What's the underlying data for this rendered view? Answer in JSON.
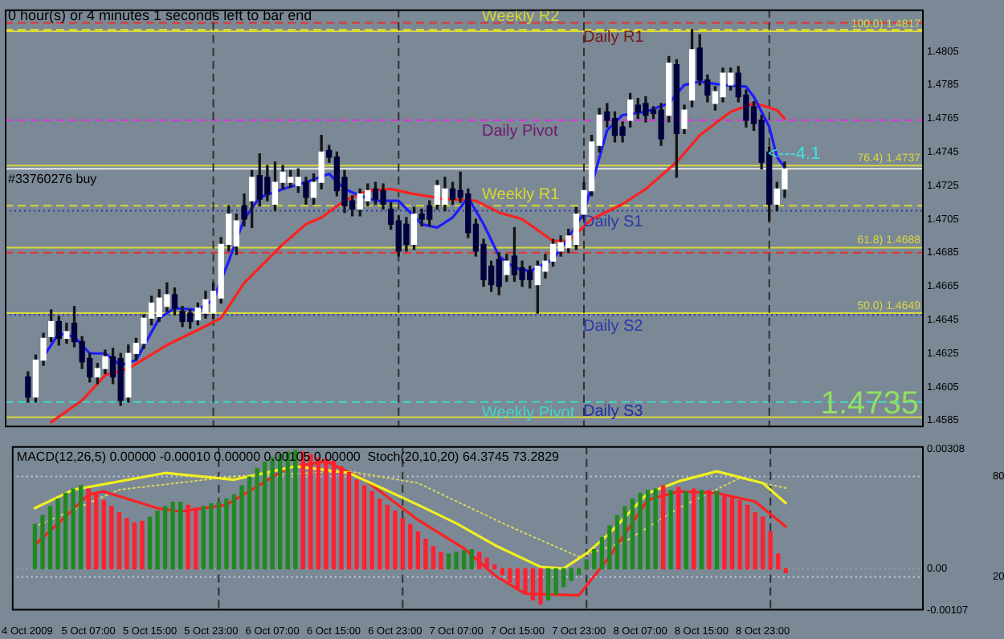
{
  "chart_data": [
    {
      "type": "candlestick",
      "x": [
        "2009-10-05T00:00",
        "2009-10-05T01:00",
        "2009-10-05T02:00",
        "2009-10-05T03:00",
        "2009-10-05T04:00",
        "2009-10-05T05:00",
        "2009-10-05T06:00",
        "2009-10-05T07:00",
        "2009-10-05T08:00",
        "2009-10-05T09:00",
        "2009-10-05T10:00",
        "2009-10-05T11:00",
        "2009-10-05T12:00",
        "2009-10-05T13:00",
        "2009-10-05T14:00",
        "2009-10-05T15:00",
        "2009-10-05T16:00",
        "2009-10-05T17:00",
        "2009-10-05T18:00",
        "2009-10-05T19:00",
        "2009-10-05T20:00",
        "2009-10-05T21:00",
        "2009-10-05T22:00",
        "2009-10-05T23:00",
        "2009-10-06T00:00",
        "2009-10-06T01:00",
        "2009-10-06T02:00",
        "2009-10-06T03:00",
        "2009-10-06T04:00",
        "2009-10-06T05:00",
        "2009-10-06T06:00",
        "2009-10-06T07:00",
        "2009-10-06T08:00",
        "2009-10-06T09:00",
        "2009-10-06T10:00",
        "2009-10-06T11:00",
        "2009-10-06T12:00",
        "2009-10-06T13:00",
        "2009-10-06T14:00",
        "2009-10-06T15:00",
        "2009-10-06T16:00",
        "2009-10-06T17:00",
        "2009-10-06T18:00",
        "2009-10-06T19:00",
        "2009-10-06T20:00",
        "2009-10-06T21:00",
        "2009-10-06T22:00",
        "2009-10-06T23:00",
        "2009-10-07T00:00",
        "2009-10-07T01:00",
        "2009-10-07T02:00",
        "2009-10-07T03:00",
        "2009-10-07T04:00",
        "2009-10-07T05:00",
        "2009-10-07T06:00",
        "2009-10-07T07:00",
        "2009-10-07T08:00",
        "2009-10-07T09:00",
        "2009-10-07T10:00",
        "2009-10-07T11:00",
        "2009-10-07T12:00",
        "2009-10-07T13:00",
        "2009-10-07T14:00",
        "2009-10-07T15:00",
        "2009-10-07T16:00",
        "2009-10-07T17:00",
        "2009-10-07T18:00",
        "2009-10-07T19:00",
        "2009-10-07T20:00",
        "2009-10-07T21:00",
        "2009-10-07T22:00",
        "2009-10-07T23:00",
        "2009-10-08T00:00",
        "2009-10-08T01:00",
        "2009-10-08T02:00",
        "2009-10-08T03:00",
        "2009-10-08T04:00",
        "2009-10-08T05:00",
        "2009-10-08T06:00",
        "2009-10-08T07:00",
        "2009-10-08T08:00",
        "2009-10-08T09:00",
        "2009-10-08T10:00",
        "2009-10-08T11:00",
        "2009-10-08T12:00",
        "2009-10-08T13:00",
        "2009-10-08T14:00",
        "2009-10-08T15:00",
        "2009-10-08T16:00",
        "2009-10-08T17:00",
        "2009-10-08T18:00",
        "2009-10-08T19:00",
        "2009-10-08T20:00",
        "2009-10-08T21:00",
        "2009-10-08T22:00",
        "2009-10-08T23:00",
        "2009-10-09T00:00",
        "2009-10-09T01:00",
        "2009-10-09T02:00"
      ],
      "ohlc": [
        [
          1.4611,
          1.4614,
          1.4596,
          1.4599
        ],
        [
          1.4599,
          1.4624,
          1.4596,
          1.4621
        ],
        [
          1.4621,
          1.4637,
          1.4618,
          1.4634
        ],
        [
          1.4635,
          1.4651,
          1.4632,
          1.4644
        ],
        [
          1.4644,
          1.4647,
          1.463,
          1.4634
        ],
        [
          1.4634,
          1.4643,
          1.4631,
          1.4638
        ],
        [
          1.4643,
          1.4653,
          1.4629,
          1.4632
        ],
        [
          1.4632,
          1.4635,
          1.4616,
          1.462
        ],
        [
          1.4622,
          1.4625,
          1.4608,
          1.4611
        ],
        [
          1.4611,
          1.4619,
          1.4607,
          1.4616
        ],
        [
          1.4616,
          1.4627,
          1.4613,
          1.4623
        ],
        [
          1.4623,
          1.4628,
          1.4607,
          1.4611
        ],
        [
          1.4622,
          1.4625,
          1.4594,
          1.4597
        ],
        [
          1.4599,
          1.463,
          1.4596,
          1.4625
        ],
        [
          1.4625,
          1.4634,
          1.4621,
          1.4631
        ],
        [
          1.4631,
          1.4648,
          1.4628,
          1.4646
        ],
        [
          1.4646,
          1.4659,
          1.4642,
          1.4655
        ],
        [
          1.4647,
          1.4663,
          1.4644,
          1.4658
        ],
        [
          1.4653,
          1.4667,
          1.465,
          1.466
        ],
        [
          1.466,
          1.4664,
          1.4648,
          1.4652
        ],
        [
          1.465,
          1.4653,
          1.4641,
          1.4644
        ],
        [
          1.4649,
          1.4651,
          1.464,
          1.4644
        ],
        [
          1.4645,
          1.4655,
          1.4642,
          1.4652
        ],
        [
          1.4649,
          1.4662,
          1.4646,
          1.4657
        ],
        [
          1.4649,
          1.4667,
          1.4646,
          1.4662
        ],
        [
          1.4658,
          1.4694,
          1.4655,
          1.469
        ],
        [
          1.469,
          1.4713,
          1.4686,
          1.4708
        ],
        [
          1.4689,
          1.4708,
          1.4684,
          1.4704
        ],
        [
          1.4713,
          1.472,
          1.4701,
          1.4705
        ],
        [
          1.4716,
          1.4734,
          1.47,
          1.473
        ],
        [
          1.4731,
          1.4744,
          1.4713,
          1.4717
        ],
        [
          1.473,
          1.4737,
          1.4716,
          1.472
        ],
        [
          1.4714,
          1.4739,
          1.471,
          1.4727
        ],
        [
          1.4727,
          1.4737,
          1.4723,
          1.4733
        ],
        [
          1.4727,
          1.4734,
          1.4724,
          1.473
        ],
        [
          1.4725,
          1.4735,
          1.4721,
          1.473
        ],
        [
          1.4727,
          1.473,
          1.4714,
          1.4718
        ],
        [
          1.4718,
          1.4732,
          1.4714,
          1.4727
        ],
        [
          1.4727,
          1.4755,
          1.4723,
          1.4745
        ],
        [
          1.4746,
          1.4749,
          1.4739,
          1.4742
        ],
        [
          1.4742,
          1.4745,
          1.4719,
          1.4722
        ],
        [
          1.473,
          1.4734,
          1.4709,
          1.4713
        ],
        [
          1.4716,
          1.4719,
          1.4707,
          1.4711
        ],
        [
          1.4711,
          1.4723,
          1.4707,
          1.472
        ],
        [
          1.4716,
          1.4726,
          1.4713,
          1.4722
        ],
        [
          1.4723,
          1.4727,
          1.4714,
          1.4717
        ],
        [
          1.4722,
          1.4726,
          1.4711,
          1.4714
        ],
        [
          1.4711,
          1.4715,
          1.4699,
          1.4702
        ],
        [
          1.4704,
          1.4707,
          1.4683,
          1.4686
        ],
        [
          1.4702,
          1.4706,
          1.4686,
          1.469
        ],
        [
          1.469,
          1.4712,
          1.4687,
          1.4708
        ],
        [
          1.4708,
          1.4711,
          1.4701,
          1.4705
        ],
        [
          1.4713,
          1.4716,
          1.4701,
          1.4705
        ],
        [
          1.4714,
          1.4728,
          1.4711,
          1.4725
        ],
        [
          1.4714,
          1.473,
          1.471,
          1.4723
        ],
        [
          1.4723,
          1.4727,
          1.4714,
          1.4717
        ],
        [
          1.4722,
          1.4733,
          1.4715,
          1.4718
        ],
        [
          1.472,
          1.4723,
          1.4694,
          1.4697
        ],
        [
          1.4702,
          1.4705,
          1.4683,
          1.4686
        ],
        [
          1.469,
          1.4693,
          1.4665,
          1.4669
        ],
        [
          1.4677,
          1.468,
          1.4662,
          1.4666
        ],
        [
          1.4681,
          1.4685,
          1.466,
          1.4665
        ],
        [
          1.4672,
          1.4684,
          1.4668,
          1.468
        ],
        [
          1.4683,
          1.47,
          1.4668,
          1.4672
        ],
        [
          1.4676,
          1.468,
          1.4665,
          1.4669
        ],
        [
          1.4674,
          1.4677,
          1.4664,
          1.4669
        ],
        [
          1.4666,
          1.468,
          1.4649,
          1.4677
        ],
        [
          1.4674,
          1.4684,
          1.467,
          1.468
        ],
        [
          1.468,
          1.4693,
          1.4677,
          1.469
        ],
        [
          1.4686,
          1.4695,
          1.4683,
          1.4691
        ],
        [
          1.4688,
          1.4699,
          1.4685,
          1.4695
        ],
        [
          1.469,
          1.4712,
          1.4687,
          1.4708
        ],
        [
          1.4708,
          1.4727,
          1.4705,
          1.4722
        ],
        [
          1.4722,
          1.4755,
          1.4719,
          1.4751
        ],
        [
          1.4749,
          1.4771,
          1.4745,
          1.4767
        ],
        [
          1.4769,
          1.4774,
          1.476,
          1.4764
        ],
        [
          1.4765,
          1.4769,
          1.4751,
          1.4755
        ],
        [
          1.476,
          1.4763,
          1.4751,
          1.4755
        ],
        [
          1.4764,
          1.478,
          1.476,
          1.4776
        ],
        [
          1.4773,
          1.4777,
          1.4765,
          1.4769
        ],
        [
          1.4774,
          1.4778,
          1.4763,
          1.4767
        ],
        [
          1.477,
          1.4772,
          1.4765,
          1.4768
        ],
        [
          1.477,
          1.4774,
          1.4749,
          1.4753
        ],
        [
          1.4767,
          1.4802,
          1.4763,
          1.4798
        ],
        [
          1.4797,
          1.48,
          1.473,
          1.4756
        ],
        [
          1.4759,
          1.4773,
          1.4756,
          1.477
        ],
        [
          1.4776,
          1.4818,
          1.4772,
          1.4806
        ],
        [
          1.4807,
          1.4815,
          1.4785,
          1.4788
        ],
        [
          1.4788,
          1.4791,
          1.4775,
          1.4779
        ],
        [
          1.4774,
          1.4784,
          1.477,
          1.4781
        ],
        [
          1.4778,
          1.4795,
          1.4775,
          1.4792
        ],
        [
          1.4785,
          1.4795,
          1.4782,
          1.4792
        ],
        [
          1.4792,
          1.4796,
          1.4775,
          1.4778
        ],
        [
          1.4779,
          1.4782,
          1.476,
          1.4764
        ],
        [
          1.4772,
          1.4775,
          1.4758,
          1.4762
        ],
        [
          1.4764,
          1.4767,
          1.4735,
          1.4739
        ],
        [
          1.4745,
          1.4748,
          1.4704,
          1.4714
        ],
        [
          1.4714,
          1.4727,
          1.471,
          1.4723
        ],
        [
          1.4723,
          1.4739,
          1.4718,
          1.4735
        ]
      ],
      "xlim": [
        "2009-10-04T21:00",
        "2009-10-09T20:00"
      ],
      "ylim": [
        1.4581,
        1.483
      ],
      "yticks": [
        1.4585,
        1.4605,
        1.4625,
        1.4645,
        1.4665,
        1.4685,
        1.4705,
        1.4725,
        1.4745,
        1.4765,
        1.4785,
        1.4805
      ],
      "tick_labels": "y",
      "grid": false,
      "legend": false,
      "series": [
        {
          "type": "line",
          "color": "#1c1cff",
          "x": [
            "2009-10-05T02:00",
            "2009-10-05T04:00",
            "2009-10-05T06:00",
            "2009-10-05T08:00",
            "2009-10-05T10:00",
            "2009-10-05T12:00",
            "2009-10-05T14:00",
            "2009-10-05T17:00",
            "2009-10-05T19:00",
            "2009-10-05T22:00",
            "2009-10-06T00:00",
            "2009-10-06T02:00",
            "2009-10-06T04:00",
            "2009-10-06T06:00",
            "2009-10-06T09:00",
            "2009-10-06T12:00",
            "2009-10-06T15:00",
            "2009-10-06T17:00",
            "2009-10-06T19:00",
            "2009-10-06T21:00",
            "2009-10-07T00:00",
            "2009-10-07T03:00",
            "2009-10-07T05:00",
            "2009-10-07T07:00",
            "2009-10-07T09:00",
            "2009-10-07T11:00",
            "2009-10-07T13:00",
            "2009-10-07T15:00",
            "2009-10-07T17:00",
            "2009-10-07T20:00",
            "2009-10-07T22:00",
            "2009-10-08T00:00",
            "2009-10-08T01:00",
            "2009-10-08T03:00",
            "2009-10-08T05:00",
            "2009-10-08T08:00",
            "2009-10-08T11:00",
            "2009-10-08T13:00",
            "2009-10-08T15:00",
            "2009-10-08T18:00",
            "2009-10-08T21:00",
            "2009-10-08T22:00",
            "2009-10-09T00:00",
            "2009-10-09T01:00",
            "2009-10-09T02:00"
          ],
          "values": [
            1.4623,
            1.4637,
            1.4635,
            1.4625,
            1.4625,
            1.4618,
            1.4621,
            1.4646,
            1.4652,
            1.4651,
            1.4657,
            1.468,
            1.4705,
            1.4718,
            1.4723,
            1.4727,
            1.4732,
            1.4723,
            1.4719,
            1.4716,
            1.4716,
            1.4702,
            1.47,
            1.4706,
            1.4718,
            1.4702,
            1.4683,
            1.4676,
            1.4674,
            1.4681,
            1.4694,
            1.4709,
            null,
            1.4758,
            1.4767,
            1.4769,
            1.4774,
            1.4785,
            1.4787,
            1.4785,
            1.4784,
            1.4778,
            1.476,
            1.4742,
            1.4736
          ]
        },
        {
          "type": "line",
          "color": "#ff2020",
          "x": [
            "2009-10-05T03:00",
            "2009-10-05T07:00",
            "2009-10-05T10:00",
            "2009-10-05T13:00",
            "2009-10-05T18:00",
            "2009-10-05T22:00",
            "2009-10-06T01:00",
            "2009-10-06T04:00",
            "2009-10-06T09:00",
            "2009-10-06T12:00",
            "2009-10-06T14:00",
            "2009-10-06T17:00",
            "2009-10-06T20:00",
            "2009-10-06T23:00",
            "2009-10-07T02:00",
            "2009-10-07T06:00",
            "2009-10-07T10:00",
            "2009-10-07T13:00",
            "2009-10-07T16:00",
            "2009-10-07T20:00",
            "2009-10-07T22:00",
            "2009-10-08T01:00",
            "2009-10-08T05:00",
            "2009-10-08T08:00",
            "2009-10-08T12:00",
            "2009-10-08T15:00",
            "2009-10-08T19:00",
            "2009-10-08T22:00",
            "2009-10-08T23:00",
            "2009-10-09T01:00",
            "2009-10-09T02:00"
          ],
          "values": [
            1.4584,
            1.4597,
            1.4612,
            1.4616,
            1.463,
            1.4639,
            1.4646,
            1.4667,
            1.469,
            1.4702,
            1.4706,
            1.4716,
            1.4722,
            1.4723,
            1.472,
            1.4717,
            1.4716,
            1.4709,
            1.4705,
            1.4692,
            1.4692,
            1.4705,
            1.4714,
            1.4723,
            1.4739,
            1.4755,
            1.4769,
            1.4774,
            1.4773,
            1.477,
            1.4765
          ]
        }
      ],
      "ref_lines": [
        {
          "axis": "y",
          "value": 1.4822,
          "label": "Daily R1",
          "color": "#e83030",
          "line_style": "dashed"
        },
        {
          "axis": "y",
          "value": 1.4818,
          "label": "Weekly R2",
          "color": "#d8d830",
          "line_style": "dashed"
        },
        {
          "axis": "y",
          "value": 1.4817,
          "label": "100.0) 1.4817",
          "color": "#d8d840"
        },
        {
          "axis": "y",
          "value": 1.4764,
          "label": "Daily Pivot",
          "color": "#e030e0",
          "line_style": "dashed"
        },
        {
          "axis": "y",
          "value": 1.4737,
          "label": "76.4) 1.4737",
          "color": "#d8d840"
        },
        {
          "axis": "y",
          "value": 1.4735,
          "color": "#e8e8e8"
        },
        {
          "axis": "y",
          "value": 1.4713,
          "label": "Weekly R1",
          "color": "#d8d830",
          "line_style": "dashed"
        },
        {
          "axis": "y",
          "value": 1.471,
          "label": "Daily S1",
          "color": "#2a3aa8",
          "line_style": "dotted"
        },
        {
          "axis": "y",
          "value": 1.4688,
          "label": "61.8) 1.4688",
          "color": "#d8d840"
        },
        {
          "axis": "y",
          "value": 1.4685,
          "color": "#e83030",
          "line_style": "dashed"
        },
        {
          "axis": "y",
          "value": 1.4649,
          "label": "50.0) 1.4649",
          "color": "#d8d840"
        },
        {
          "axis": "y",
          "value": 1.4648,
          "label": "Daily S2",
          "color": "#2a3aa8",
          "line_style": "dotted"
        },
        {
          "axis": "y",
          "value": 1.4596,
          "label": "Weekly Pivot",
          "color": "#40d8c8",
          "line_style": "dashed"
        },
        {
          "axis": "y",
          "value": 1.4587,
          "color": "#d8d840"
        },
        {
          "axis": "x",
          "value": "2009-10-06T00:00",
          "color": "#303030",
          "line_style": "dashed"
        },
        {
          "axis": "x",
          "value": "2009-10-07T00:00",
          "color": "#303030",
          "line_style": "dashed"
        },
        {
          "axis": "x",
          "value": "2009-10-08T00:00",
          "color": "#303030",
          "line_style": "dashed"
        },
        {
          "axis": "x",
          "value": "2009-10-09T00:00",
          "color": "#303030",
          "line_style": "dashed"
        }
      ],
      "annotations": [
        "0 hour(s) or 4 minutes 1 seconds left to bar end",
        "#33760276 buy",
        "<---4.1",
        "1.4735",
        "Daily S3"
      ]
    },
    {
      "type": "bar",
      "title": "MACD(12,26,5) 0.00000 -0.00010 0.00000 0.00105 0.00000  Stoch(20,10,20) 64.3745 73.2829",
      "x": [
        "2009-10-05T00:00",
        "2009-10-05T01:00",
        "2009-10-05T02:00",
        "2009-10-05T03:00",
        "2009-10-05T04:00",
        "2009-10-05T05:00",
        "2009-10-05T06:00",
        "2009-10-05T07:00",
        "2009-10-05T08:00",
        "2009-10-05T09:00",
        "2009-10-05T10:00",
        "2009-10-05T11:00",
        "2009-10-05T12:00",
        "2009-10-05T13:00",
        "2009-10-05T14:00",
        "2009-10-05T15:00",
        "2009-10-05T16:00",
        "2009-10-05T17:00",
        "2009-10-05T18:00",
        "2009-10-05T19:00",
        "2009-10-05T20:00",
        "2009-10-05T21:00",
        "2009-10-05T22:00",
        "2009-10-05T23:00",
        "2009-10-06T00:00",
        "2009-10-06T01:00",
        "2009-10-06T02:00",
        "2009-10-06T03:00",
        "2009-10-06T04:00",
        "2009-10-06T05:00",
        "2009-10-06T06:00",
        "2009-10-06T07:00",
        "2009-10-06T08:00",
        "2009-10-06T09:00",
        "2009-10-06T10:00",
        "2009-10-06T11:00",
        "2009-10-06T12:00",
        "2009-10-06T13:00",
        "2009-10-06T14:00",
        "2009-10-06T15:00",
        "2009-10-06T16:00",
        "2009-10-06T17:00",
        "2009-10-06T18:00",
        "2009-10-06T19:00",
        "2009-10-06T20:00",
        "2009-10-06T21:00",
        "2009-10-06T22:00",
        "2009-10-06T23:00",
        "2009-10-07T00:00",
        "2009-10-07T01:00",
        "2009-10-07T02:00",
        "2009-10-07T03:00",
        "2009-10-07T04:00",
        "2009-10-07T05:00",
        "2009-10-07T06:00",
        "2009-10-07T07:00",
        "2009-10-07T08:00",
        "2009-10-07T09:00",
        "2009-10-07T10:00",
        "2009-10-07T11:00",
        "2009-10-07T12:00",
        "2009-10-07T13:00",
        "2009-10-07T14:00",
        "2009-10-07T15:00",
        "2009-10-07T16:00",
        "2009-10-07T17:00",
        "2009-10-07T18:00",
        "2009-10-07T19:00",
        "2009-10-07T20:00",
        "2009-10-07T21:00",
        "2009-10-07T22:00",
        "2009-10-07T23:00",
        "2009-10-08T00:00",
        "2009-10-08T01:00",
        "2009-10-08T02:00",
        "2009-10-08T03:00",
        "2009-10-08T04:00",
        "2009-10-08T05:00",
        "2009-10-08T06:00",
        "2009-10-08T07:00",
        "2009-10-08T08:00",
        "2009-10-08T09:00",
        "2009-10-08T10:00",
        "2009-10-08T11:00",
        "2009-10-08T12:00",
        "2009-10-08T13:00",
        "2009-10-08T14:00",
        "2009-10-08T15:00",
        "2009-10-08T16:00",
        "2009-10-08T17:00",
        "2009-10-08T18:00",
        "2009-10-08T19:00",
        "2009-10-08T20:00",
        "2009-10-08T21:00",
        "2009-10-08T22:00",
        "2009-10-08T23:00",
        "2009-10-09T00:00",
        "2009-10-09T01:00",
        "2009-10-09T02:00"
      ],
      "xlim": [
        "2009-10-04T21:00",
        "2009-10-09T20:00"
      ],
      "xticks": [
        {
          "value": "2009-10-04T23:00",
          "label": "4 Oct 2009"
        },
        {
          "value": "2009-10-05T07:00",
          "label": "5 Oct 07:00"
        },
        {
          "value": "2009-10-05T15:00",
          "label": "5 Oct 15:00"
        },
        {
          "value": "2009-10-05T23:00",
          "label": "5 Oct 23:00"
        },
        {
          "value": "2009-10-06T07:00",
          "label": "6 Oct 07:00"
        },
        {
          "value": "2009-10-06T15:00",
          "label": "6 Oct 15:00"
        },
        {
          "value": "2009-10-06T23:00",
          "label": "6 Oct 23:00"
        },
        {
          "value": "2009-10-07T07:00",
          "label": "7 Oct 07:00"
        },
        {
          "value": "2009-10-07T15:00",
          "label": "7 Oct 15:00"
        },
        {
          "value": "2009-10-07T23:00",
          "label": "7 Oct 23:00"
        },
        {
          "value": "2009-10-08T07:00",
          "label": "8 Oct 07:00"
        },
        {
          "value": "2009-10-08T15:00",
          "label": "8 Oct 15:00"
        },
        {
          "value": "2009-10-08T23:00",
          "label": "8 Oct 23:00"
        }
      ],
      "ylim": [
        -0.00107,
        0.00315
      ],
      "yticks": [
        0.00308,
        {
          "value": 0,
          "label": "0.00"
        },
        -0.00107
      ],
      "y2lim": [
        0,
        98
      ],
      "y2ticks": [
        80,
        20
      ],
      "grid": false,
      "legend": false,
      "series": [
        {
          "colors": [
            "#1f8a1f",
            "#1f8a1f",
            "#1f8a1f",
            "#1f8a1f",
            "#1f8a1f",
            "#1f8a1f",
            "#1f8a1f",
            "#ff2030",
            "#ff2030",
            "#ff2030",
            "#ff2030",
            "#ff2030",
            "#ff2030",
            "#ff2030",
            "#ff2030",
            "#1f8a1f",
            "#1f8a1f",
            "#1f8a1f",
            "#1f8a1f",
            "#1f8a1f",
            "#ff2030",
            "#ff2030",
            "#1f8a1f",
            "#1f8a1f",
            "#1f8a1f",
            "#1f8a1f",
            "#1f8a1f",
            "#1f8a1f",
            "#1f8a1f",
            "#1f8a1f",
            "#1f8a1f",
            "#1f8a1f",
            "#1f8a1f",
            "#1f8a1f",
            "#1f8a1f",
            "#ff2030",
            "#ff2030",
            "#ff2030",
            "#ff2030",
            "#ff2030",
            "#ff2030",
            "#ff2030",
            "#ff2030",
            "#ff2030",
            "#ff2030",
            "#ff2030",
            "#ff2030",
            "#ff2030",
            "#ff2030",
            "#ff2030",
            "#ff2030",
            "#ff2030",
            "#ff2030",
            "#ff2030",
            "#1f8a1f",
            "#1f8a1f",
            "#1f8a1f",
            "#1f8a1f",
            "#ff2030",
            "#ff2030",
            "#ff2030",
            "#ff2030",
            "#ff2030",
            "#ff2030",
            "#ff2030",
            "#ff2030",
            "#ff2030",
            "#1f8a1f",
            "#1f8a1f",
            "#1f8a1f",
            "#1f8a1f",
            "#1f8a1f",
            "#1f8a1f",
            "#1f8a1f",
            "#1f8a1f",
            "#1f8a1f",
            "#1f8a1f",
            "#1f8a1f",
            "#1f8a1f",
            "#1f8a1f",
            "#1f8a1f",
            "#1f8a1f",
            "#ff2030",
            "#1f8a1f",
            "#ff2030",
            "#1f8a1f",
            "#ff2030",
            "#1f8a1f",
            "#ff2030",
            "#1f8a1f",
            "#ff2030",
            "#ff2030",
            "#ff2030",
            "#ff2030",
            "#ff2030",
            "#ff2030",
            "#ff2030",
            "#ff2030",
            "#ff2030"
          ],
          "values": [
            0.00114,
            0.00137,
            0.0016,
            0.00179,
            0.00194,
            0.00205,
            0.00213,
            0.00205,
            0.0019,
            0.00175,
            0.0016,
            0.00144,
            0.00129,
            0.00118,
            0.00122,
            0.00133,
            0.00148,
            0.0016,
            0.00171,
            0.00171,
            0.00163,
            0.00156,
            0.0016,
            0.00167,
            0.00171,
            0.00179,
            0.0019,
            0.00213,
            0.00236,
            0.00258,
            0.00274,
            0.00285,
            0.00293,
            0.003,
            0.00304,
            0.003,
            0.00293,
            0.00285,
            0.00281,
            0.00277,
            0.00262,
            0.00247,
            0.00228,
            0.00213,
            0.00198,
            0.00179,
            0.00163,
            0.00148,
            0.00129,
            0.00114,
            0.00095,
            0.00076,
            0.00057,
            0.00042,
            0.00038,
            0.00042,
            0.00046,
            0.00049,
            0.00042,
            0.00027,
            0.0001,
            -0.00015,
            -0.00034,
            -0.00053,
            -0.00065,
            -0.0008,
            -0.00091,
            -0.0008,
            -0.00065,
            -0.00046,
            -0.0003,
            -0.00015,
            0.00023,
            0.00049,
            0.0008,
            0.0011,
            0.00137,
            0.0016,
            0.00179,
            0.00194,
            0.00201,
            0.00205,
            0.00213,
            0.00201,
            0.00209,
            0.00198,
            0.00205,
            0.00201,
            0.00201,
            0.00198,
            0.0019,
            0.00182,
            0.00175,
            0.00163,
            0.00144,
            0.00133,
            0.00095,
            0.00038,
            -0.0001
          ]
        },
        {
          "type": "line",
          "axis": "y2",
          "color": "#f0f020",
          "x": [
            "2009-10-05T00:00",
            "2009-10-05T05:00",
            "2009-10-05T17:00",
            "2009-10-06T02:00",
            "2009-10-06T10:00",
            "2009-10-06T17:00",
            "2009-10-07T02:00",
            "2009-10-07T07:00",
            "2009-10-07T12:00",
            "2009-10-07T18:00",
            "2009-10-07T21:00",
            "2009-10-08T00:00",
            "2009-10-08T03:00",
            "2009-10-08T08:00",
            "2009-10-08T12:00",
            "2009-10-08T17:00",
            "2009-10-08T23:00",
            "2009-10-09T02:00"
          ],
          "values": [
            61,
            72,
            82,
            78,
            86,
            82,
            63,
            52,
            39,
            26,
            25,
            34,
            46,
            70,
            77,
            83,
            76,
            64
          ]
        },
        {
          "type": "line",
          "axis": "y2",
          "color": "#ff2020",
          "x": [
            "2009-10-05T00:00",
            "2009-10-05T07:00",
            "2009-10-05T09:00",
            "2009-10-05T16:00",
            "2009-10-05T19:00",
            "2009-10-06T01:00",
            "2009-10-06T09:00",
            "2009-10-06T14:00",
            "2009-10-06T19:00",
            "2009-10-07T02:00",
            "2009-10-07T08:00",
            "2009-10-07T12:00",
            "2009-10-07T16:00",
            "2009-10-07T23:00",
            "2009-10-08T03:00",
            "2009-10-08T08:00",
            "2009-10-08T12:00",
            "2009-10-08T17:00",
            "2009-10-08T22:00",
            "2009-10-09T02:00"
          ],
          "values": [
            39,
            69,
            71,
            61,
            59,
            63,
            85,
            89,
            78,
            54,
            37,
            21,
            10,
            9,
            32,
            66,
            71,
            70,
            65,
            50
          ]
        },
        {
          "type": "line",
          "axis": "y2",
          "color": "#d8d860",
          "line_style": "dotted",
          "x": [
            "2009-10-05T00:00",
            "2009-10-05T11:00",
            "2009-10-06T02:00",
            "2009-10-06T17:00",
            "2009-10-07T02:00",
            "2009-10-07T14:00",
            "2009-10-07T23:00",
            "2009-10-08T05:00",
            "2009-10-08T12:00",
            "2009-10-08T20:00",
            "2009-10-09T02:00"
          ],
          "values": [
            50,
            72,
            80,
            83,
            76,
            50,
            32,
            41,
            61,
            79,
            73
          ]
        }
      ],
      "ref_lines": [
        {
          "axis": "y2",
          "value": 80,
          "color": "#c8c8e8",
          "line_style": "dotted"
        },
        {
          "axis": "y2",
          "value": 20,
          "color": "#c8c8e8",
          "line_style": "dotted"
        },
        {
          "axis": "y",
          "value": 0,
          "color": "#a0a0a0",
          "line_style": "dotted"
        },
        {
          "axis": "x",
          "value": "2009-10-06T00:00",
          "color": "#303030",
          "line_style": "dashed"
        },
        {
          "axis": "x",
          "value": "2009-10-07T00:00",
          "color": "#303030",
          "line_style": "dashed"
        },
        {
          "axis": "x",
          "value": "2009-10-08T00:00",
          "color": "#303030",
          "line_style": "dashed"
        },
        {
          "axis": "x",
          "value": "2009-10-09T00:00",
          "color": "#303030",
          "line_style": "dashed"
        }
      ]
    }
  ]
}
